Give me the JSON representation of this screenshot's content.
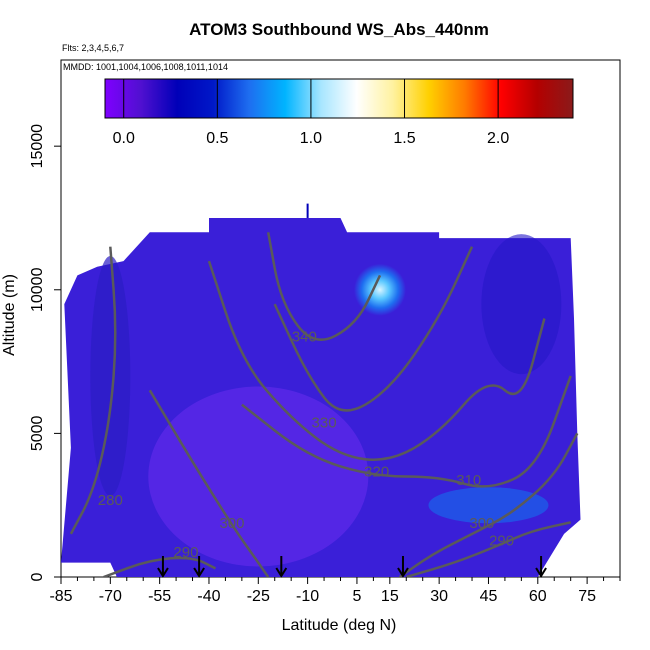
{
  "chart_data": {
    "type": "heatmap",
    "title": "ATOM3 Southbound WS_Abs_440nm",
    "notes": [
      "Flts: 2,3,4,5,6,7",
      "MMDD: 1001,1004,1006,1008,1011,1014"
    ],
    "xlabel": "Latitude (deg N)",
    "ylabel": "Altitude (m)",
    "xlim": [
      -85,
      85
    ],
    "ylim": [
      0,
      18000
    ],
    "x_ticks": [
      -85,
      -70,
      -55,
      -40,
      -25,
      -10,
      5,
      15,
      30,
      45,
      60,
      75
    ],
    "y_ticks": [
      0,
      5000,
      10000,
      15000
    ],
    "colorbar": {
      "ticks": [
        0.0,
        0.5,
        1.0,
        1.5,
        2.0
      ],
      "tick_labels": [
        "0.0",
        "0.5",
        "1.0",
        "1.5",
        "2.0"
      ],
      "range": [
        -0.1,
        2.4
      ],
      "colors": [
        "#7f00ff",
        "#5010d0",
        "#0000b8",
        "#0018c8",
        "#1e6ef0",
        "#00b4ff",
        "#a8e6ff",
        "#ffffff",
        "#fff2a0",
        "#ffd000",
        "#ff7a00",
        "#ff0000",
        "#b40000",
        "#8b1a1a"
      ]
    },
    "field_description": "low values 0.0-0.2 across the domain; local maximum ~0.9 near latitude 12, altitude 10000 m",
    "contours": [
      {
        "level": 280,
        "label": "280",
        "label_pos": [
          -70,
          2500
        ],
        "points": [
          [
            -82,
            1500
          ],
          [
            -75,
            3000
          ],
          [
            -70,
            5500
          ],
          [
            -68,
            8500
          ],
          [
            -70,
            11500
          ]
        ]
      },
      {
        "level": 290,
        "label": "290",
        "label_pos": [
          -47,
          700
        ],
        "points": [
          [
            -72,
            0
          ],
          [
            -58,
            600
          ],
          [
            -45,
            700
          ],
          [
            -38,
            300
          ]
        ]
      },
      {
        "level": 290,
        "label": "290",
        "label_pos": [
          49,
          1100
        ],
        "points": [
          [
            20,
            0
          ],
          [
            35,
            500
          ],
          [
            48,
            1100
          ],
          [
            58,
            1600
          ],
          [
            70,
            1900
          ]
        ]
      },
      {
        "level": 300,
        "label": "300",
        "label_pos": [
          -33,
          1700
        ],
        "points": [
          [
            -58,
            6500
          ],
          [
            -45,
            4000
          ],
          [
            -33,
            1800
          ],
          [
            -25,
            500
          ],
          [
            -22,
            0
          ]
        ]
      },
      {
        "level": 300,
        "label": "300",
        "label_pos": [
          43,
          1700
        ],
        "points": [
          [
            18,
            0
          ],
          [
            28,
            800
          ],
          [
            40,
            1500
          ],
          [
            52,
            2200
          ],
          [
            65,
            3500
          ],
          [
            72,
            5000
          ]
        ]
      },
      {
        "level": 310,
        "label": "310",
        "label_pos": [
          39,
          3200
        ],
        "points": [
          [
            -30,
            6000
          ],
          [
            -10,
            4200
          ],
          [
            10,
            3500
          ],
          [
            30,
            3500
          ],
          [
            45,
            3000
          ],
          [
            60,
            3800
          ],
          [
            70,
            7000
          ]
        ]
      },
      {
        "level": 320,
        "label": "320",
        "label_pos": [
          11,
          3500
        ],
        "points": [
          [
            -40,
            11000
          ],
          [
            -30,
            7500
          ],
          [
            -15,
            5500
          ],
          [
            0,
            4200
          ],
          [
            15,
            4000
          ],
          [
            30,
            5000
          ],
          [
            45,
            7000
          ],
          [
            55,
            6000
          ],
          [
            62,
            9000
          ]
        ]
      },
      {
        "level": 330,
        "label": "330",
        "label_pos": [
          -5,
          5200
        ],
        "points": [
          [
            -20,
            9500
          ],
          [
            -10,
            7000
          ],
          [
            0,
            5500
          ],
          [
            15,
            6500
          ],
          [
            30,
            9000
          ],
          [
            40,
            11500
          ]
        ]
      },
      {
        "level": 340,
        "label": "340",
        "label_pos": [
          -11,
          8200
        ],
        "points": [
          [
            -22,
            12000
          ],
          [
            -18,
            9500
          ],
          [
            -8,
            8000
          ],
          [
            5,
            8800
          ],
          [
            12,
            10500
          ]
        ]
      }
    ],
    "flight_markers_lat": [
      -54,
      -43,
      -18,
      19,
      61
    ]
  },
  "colors": {
    "background": "#ffffff",
    "field_low": "#3a1fd8",
    "contour": "#5a5a5a",
    "high_spot": "#1e6ef0"
  }
}
